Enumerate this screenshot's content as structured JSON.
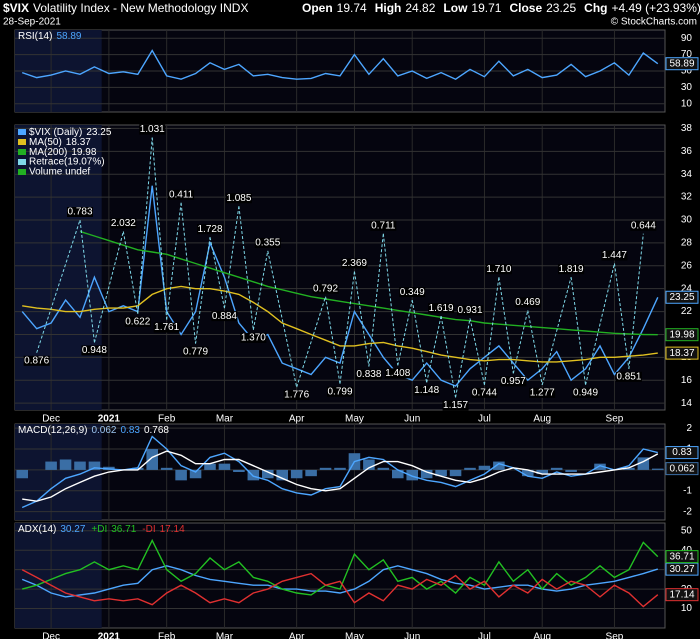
{
  "header": {
    "symbol": "$VIX",
    "name": "Volatility Index - New Methodology INDX",
    "date": "28-Sep-2021",
    "quote": [
      {
        "label": "Open",
        "value": "19.74"
      },
      {
        "label": "High",
        "value": "24.82"
      },
      {
        "label": "Low",
        "value": "19.71"
      },
      {
        "label": "Close",
        "value": "23.25"
      },
      {
        "label": "Chg",
        "value": "+4.49 (+23.93%)"
      }
    ],
    "credit": "© StockCharts.com"
  },
  "chart_data": [
    {
      "type": "line",
      "ylim": [
        0,
        100
      ],
      "yticks": [
        90,
        70,
        50,
        30,
        10
      ],
      "grid": true,
      "legend_layout": "inline",
      "series": [
        {
          "name": "RSI(14)",
          "color": "#4da6ff",
          "end_label": true,
          "values": [
            48,
            42,
            45,
            50,
            46,
            55,
            47,
            49,
            46,
            75,
            44,
            40,
            47,
            60,
            52,
            58,
            44,
            46,
            42,
            40,
            41,
            47,
            44,
            70,
            46,
            65,
            44,
            50,
            41,
            48,
            40,
            52,
            43,
            62,
            44,
            52,
            42,
            45,
            58,
            43,
            50,
            60,
            45,
            72,
            58.89
          ]
        }
      ]
    },
    {
      "type": "line",
      "ylim": [
        13.4,
        38.3
      ],
      "yticks": [
        38,
        36,
        34,
        32,
        30,
        28,
        26,
        24,
        22,
        20,
        18,
        16,
        14
      ],
      "grid": true,
      "legend_layout": "stacked",
      "categories": [
        null,
        null,
        "Dec",
        null,
        null,
        null,
        "2021",
        null,
        null,
        null,
        "Feb",
        null,
        null,
        null,
        "Mar",
        null,
        null,
        null,
        null,
        "Apr",
        null,
        null,
        null,
        "May",
        null,
        null,
        null,
        "Jun",
        null,
        null,
        null,
        null,
        "Jul",
        null,
        null,
        null,
        "Aug",
        null,
        null,
        null,
        null,
        "Sep",
        null,
        null,
        null
      ],
      "series": [
        {
          "name": "$VIX (Daily)",
          "color": "#4da6ff",
          "end_label": true,
          "values": [
            22,
            20.5,
            21,
            23,
            21.5,
            25,
            22,
            22.5,
            22,
            33,
            22,
            20,
            22,
            28,
            25,
            21,
            19.5,
            20,
            17.5,
            17,
            16.5,
            18,
            17.5,
            22,
            20,
            18,
            16.5,
            16,
            17.5,
            16,
            15.5,
            17,
            18,
            19,
            17.5,
            16,
            17,
            18.5,
            16,
            17,
            19,
            16.5,
            18,
            20.5,
            23.25
          ]
        },
        {
          "name": "MA(50)",
          "color": "#e0c020",
          "end_label": true,
          "values": [
            22.5,
            22.3,
            22.2,
            22,
            22,
            22.2,
            22.3,
            22.3,
            22.5,
            23.5,
            24,
            24.2,
            24,
            24,
            23.8,
            23.5,
            22.8,
            22,
            21,
            20.5,
            20,
            19.5,
            19,
            19,
            19.2,
            19.3,
            19,
            18.8,
            18.5,
            18.2,
            18,
            17.8,
            17.7,
            17.8,
            17.8,
            17.7,
            17.6,
            17.6,
            17.7,
            17.8,
            18,
            18,
            18.1,
            18.2,
            18.37
          ]
        },
        {
          "name": "MA(200)",
          "color": "#22b022",
          "end_label": true,
          "values": [
            null,
            null,
            null,
            null,
            29,
            28.6,
            28.2,
            27.8,
            27.4,
            27.2,
            27,
            26.6,
            26.2,
            25.8,
            25.4,
            25,
            24.6,
            24.2,
            23.9,
            23.6,
            23.3,
            23.1,
            22.9,
            22.7,
            22.5,
            22.3,
            22.1,
            21.9,
            21.7,
            21.5,
            21.3,
            21.2,
            21,
            20.9,
            20.8,
            20.7,
            20.6,
            20.5,
            20.4,
            20.3,
            20.2,
            20.1,
            20.05,
            20,
            19.98
          ]
        }
      ],
      "retrace": {
        "name": "Retrace(19.07%)",
        "color": "#7fd8e8",
        "values": [
          null,
          18.4,
          null,
          null,
          30,
          19.3,
          null,
          29,
          21.8,
          37.2,
          21.3,
          31.5,
          19.2,
          28.5,
          22.3,
          31.2,
          20.4,
          27.3,
          null,
          15.4,
          null,
          23.3,
          15.7,
          25.5,
          17.2,
          28.8,
          17.3,
          23,
          15.8,
          21.6,
          14.5,
          21.4,
          15.6,
          25,
          16.6,
          22.1,
          15.6,
          null,
          25,
          15.6,
          null,
          26.2,
          17,
          28.8,
          null
        ],
        "labels": [
          null,
          "0.876",
          null,
          null,
          "0.783",
          "0.948",
          null,
          "2.032",
          "0.622",
          "1.031",
          "1.761",
          "0.411",
          "0.779",
          "1.728",
          "0.884",
          "1.085",
          "1.370",
          "0.355",
          null,
          "1.776",
          null,
          "0.792",
          "0.799",
          "2.369",
          "0.838",
          "0.711",
          "1.408",
          "0.349",
          "1.148",
          "1.619",
          "1.157",
          "0.931",
          "0.744",
          "1.710",
          "0.957",
          "0.469",
          "1.277",
          null,
          "1.819",
          "0.949",
          null,
          "1.447",
          "0.851",
          "0.644",
          null
        ]
      },
      "extra_legend": [
        "Volume undef"
      ]
    },
    {
      "type": "line",
      "label": "MACD(12,26,9)",
      "ylim": [
        -2.4,
        2.2
      ],
      "yticks": [
        2,
        1,
        0,
        -1,
        -2
      ],
      "grid": true,
      "legend_layout": "inline",
      "series": [
        {
          "color": "#3a6ea5",
          "style": "bars",
          "end_label": true,
          "values": [
            -0.4,
            0,
            0.4,
            0.5,
            0.4,
            0.4,
            0.15,
            0,
            0.1,
            1.0,
            0.1,
            -0.5,
            -0.4,
            0.3,
            0.3,
            -0.1,
            -0.5,
            -0.4,
            -0.5,
            -0.4,
            -0.3,
            0.1,
            0.1,
            0.8,
            0.5,
            0.1,
            -0.4,
            -0.5,
            -0.4,
            -0.3,
            -0.3,
            0.1,
            0.2,
            0.4,
            0,
            -0.3,
            -0.2,
            0.1,
            -0.1,
            0,
            0.3,
            0,
            0.1,
            0.6,
            0.062
          ]
        },
        {
          "color": "#4da6ff",
          "end_label": true,
          "values": [
            -1.8,
            -1.5,
            -0.9,
            -0.4,
            -0.2,
            0.1,
            0.05,
            0,
            0.1,
            1.6,
            1.0,
            0.2,
            -0.1,
            0.6,
            0.8,
            0.4,
            -0.3,
            -0.5,
            -0.9,
            -1.1,
            -1.2,
            -0.9,
            -0.8,
            0.4,
            0.6,
            0.5,
            0,
            -0.3,
            -0.5,
            -0.6,
            -0.8,
            -0.5,
            -0.2,
            0.3,
            0.1,
            -0.3,
            -0.4,
            -0.1,
            -0.3,
            -0.2,
            0.2,
            0,
            0.2,
            1.0,
            0.83
          ]
        },
        {
          "color": "#ffffff",
          "values": [
            -1.4,
            -1.5,
            -1.3,
            -0.9,
            -0.6,
            -0.3,
            -0.1,
            0,
            0,
            0.6,
            0.9,
            0.7,
            0.3,
            0.3,
            0.5,
            0.5,
            0.2,
            -0.1,
            -0.4,
            -0.7,
            -0.9,
            -1.0,
            -0.9,
            -0.4,
            0.1,
            0.4,
            0.4,
            0.2,
            -0.1,
            -0.3,
            -0.5,
            -0.6,
            -0.4,
            -0.1,
            0.1,
            0,
            -0.2,
            -0.2,
            -0.2,
            -0.2,
            -0.1,
            0,
            0.1,
            0.4,
            0.768
          ]
        }
      ]
    },
    {
      "type": "line",
      "ylim": [
        0,
        54
      ],
      "yticks": [
        50,
        40,
        30,
        20,
        10
      ],
      "grid": true,
      "legend_layout": "inline",
      "categories": [
        null,
        null,
        "Dec",
        null,
        null,
        null,
        "2021",
        null,
        null,
        null,
        "Feb",
        null,
        null,
        null,
        "Mar",
        null,
        null,
        null,
        null,
        "Apr",
        null,
        null,
        null,
        "May",
        null,
        null,
        null,
        "Jun",
        null,
        null,
        null,
        null,
        "Jul",
        null,
        null,
        null,
        "Aug",
        null,
        null,
        null,
        null,
        "Sep",
        null,
        null,
        null
      ],
      "series": [
        {
          "name": "ADX(14)",
          "color": "#4da6ff",
          "end_label": true,
          "values": [
            25,
            22,
            18,
            16,
            17,
            18,
            20,
            22,
            23,
            30,
            32,
            30,
            27,
            25,
            24,
            23,
            22,
            22,
            20,
            20,
            19,
            19,
            18,
            20,
            24,
            30,
            32,
            30,
            28,
            25,
            23,
            22,
            20,
            21,
            22,
            22,
            20,
            19,
            20,
            22,
            23,
            24,
            26,
            28,
            30.27
          ]
        },
        {
          "name": "+DI",
          "color": "#22c022",
          "end_label": true,
          "values": [
            20,
            22,
            25,
            28,
            30,
            34,
            30,
            32,
            30,
            45,
            30,
            24,
            28,
            36,
            30,
            34,
            26,
            24,
            20,
            18,
            17,
            22,
            20,
            38,
            30,
            35,
            24,
            26,
            20,
            24,
            18,
            26,
            22,
            34,
            24,
            30,
            20,
            28,
            22,
            26,
            32,
            26,
            30,
            44,
            36.71
          ]
        },
        {
          "name": "-DI",
          "color": "#e03030",
          "end_label": true,
          "values": [
            30,
            26,
            22,
            18,
            16,
            14,
            15,
            14,
            15,
            12,
            18,
            22,
            18,
            13,
            15,
            13,
            18,
            20,
            24,
            26,
            28,
            22,
            24,
            13,
            18,
            14,
            22,
            20,
            25,
            22,
            27,
            20,
            24,
            16,
            22,
            18,
            25,
            20,
            24,
            22,
            16,
            22,
            18,
            11,
            17.14
          ]
        }
      ]
    }
  ]
}
